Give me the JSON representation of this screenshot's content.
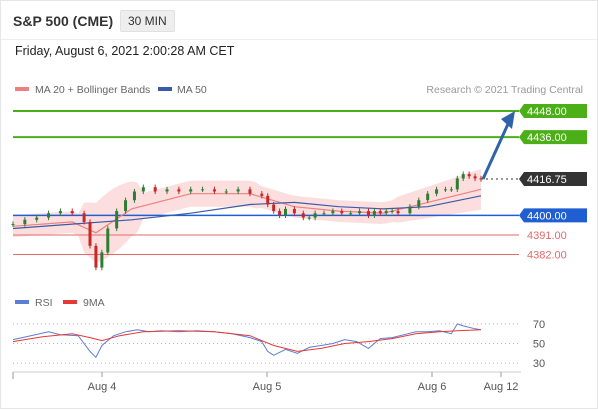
{
  "header": {
    "ticker": "S&P 500 (CME)",
    "timeframe": "30 MIN",
    "datetime": "Friday, August 6, 2021 2:00:28 AM CET"
  },
  "legend": {
    "ma20_bb": "MA 20 + Bollinger Bands",
    "ma50": "MA 50",
    "credit": "Research © 2021 Trading Central",
    "rsi": "RSI",
    "ma9": "9MA"
  },
  "colors": {
    "target": "#4caf18",
    "current": "#333333",
    "pivot": "#1f5fd1",
    "support": "#e36a6a",
    "arrow": "#2e63a8",
    "ma50": "#3a5ba8",
    "ma20": "#f08080",
    "rsi": "#5b7fd6",
    "rsi_ma": "#e53935"
  },
  "chart_data": [
    {
      "type": "line",
      "title": "S&P 500 (CME) 30 MIN",
      "x_ticks": [
        "Aug 4",
        "Aug 5",
        "Aug 6",
        "Aug 12"
      ],
      "ylim": [
        4368,
        4454
      ],
      "levels": [
        {
          "value": 4448.0,
          "label": "4448.00",
          "kind": "target"
        },
        {
          "value": 4436.0,
          "label": "4436.00",
          "kind": "target"
        },
        {
          "value": 4416.75,
          "label": "4416.75",
          "kind": "current"
        },
        {
          "value": 4400.0,
          "label": "4400.00",
          "kind": "pivot"
        },
        {
          "value": 4391.0,
          "label": "4391.00",
          "kind": "support"
        },
        {
          "value": 4382.0,
          "label": "4382.00",
          "kind": "support"
        }
      ],
      "series": [
        {
          "name": "Price",
          "points": [
            [
              0,
              4396
            ],
            [
              4,
              4398
            ],
            [
              8,
              4399
            ],
            [
              12,
              4401
            ],
            [
              16,
              4402
            ],
            [
              20,
              4401
            ],
            [
              24,
              4397
            ],
            [
              26,
              4386
            ],
            [
              28,
              4376
            ],
            [
              30,
              4383
            ],
            [
              32,
              4394
            ],
            [
              35,
              4402
            ],
            [
              38,
              4407
            ],
            [
              41,
              4411
            ],
            [
              44,
              4413
            ],
            [
              48,
              4411
            ],
            [
              52,
              4412
            ],
            [
              56,
              4411
            ],
            [
              60,
              4412
            ],
            [
              64,
              4412
            ],
            [
              68,
              4411
            ],
            [
              72,
              4411
            ],
            [
              76,
              4412
            ],
            [
              80,
              4410
            ],
            [
              84,
              4409
            ],
            [
              86,
              4405
            ],
            [
              88,
              4402
            ],
            [
              90,
              4400
            ],
            [
              92,
              4403
            ],
            [
              95,
              4401
            ],
            [
              98,
              4399
            ],
            [
              100,
              4399
            ],
            [
              102,
              4401
            ],
            [
              105,
              4401
            ],
            [
              108,
              4402
            ],
            [
              111,
              4401
            ],
            [
              114,
              4401
            ],
            [
              117,
              4402
            ],
            [
              120,
              4400
            ],
            [
              122,
              4402
            ],
            [
              124,
              4401
            ],
            [
              126,
              4402
            ],
            [
              128,
              4402
            ],
            [
              130,
              4401
            ],
            [
              134,
              4404
            ],
            [
              137,
              4407
            ],
            [
              140,
              4410
            ],
            [
              143,
              4412
            ],
            [
              146,
              4412
            ],
            [
              148,
              4412
            ],
            [
              150,
              4417
            ],
            [
              152,
              4419
            ],
            [
              154,
              4418
            ],
            [
              156,
              4417
            ],
            [
              158,
              4416.75
            ]
          ]
        },
        {
          "name": "MA 20",
          "points": [
            [
              0,
              4395
            ],
            [
              20,
              4397
            ],
            [
              28,
              4392
            ],
            [
              40,
              4403
            ],
            [
              60,
              4410
            ],
            [
              80,
              4410
            ],
            [
              95,
              4404
            ],
            [
              110,
              4402
            ],
            [
              125,
              4401
            ],
            [
              140,
              4406
            ],
            [
              158,
              4412
            ]
          ]
        },
        {
          "name": "MA 50",
          "points": [
            [
              0,
              4394
            ],
            [
              20,
              4396
            ],
            [
              40,
              4398
            ],
            [
              60,
              4401
            ],
            [
              80,
              4405
            ],
            [
              95,
              4406
            ],
            [
              110,
              4404
            ],
            [
              125,
              4403
            ],
            [
              140,
              4404
            ],
            [
              158,
              4409
            ]
          ]
        }
      ]
    },
    {
      "type": "line",
      "ylim": [
        23,
        75
      ],
      "y_ticks": [
        30,
        50,
        70
      ],
      "series": [
        {
          "name": "RSI",
          "points": [
            [
              0,
              54
            ],
            [
              6,
              58
            ],
            [
              12,
              62
            ],
            [
              16,
              59
            ],
            [
              22,
              58
            ],
            [
              26,
              42
            ],
            [
              28,
              36
            ],
            [
              30,
              48
            ],
            [
              34,
              58
            ],
            [
              38,
              62
            ],
            [
              42,
              64
            ],
            [
              46,
              62
            ],
            [
              50,
              63
            ],
            [
              56,
              62
            ],
            [
              62,
              63
            ],
            [
              68,
              62
            ],
            [
              74,
              60
            ],
            [
              80,
              56
            ],
            [
              84,
              52
            ],
            [
              86,
              42
            ],
            [
              88,
              38
            ],
            [
              92,
              44
            ],
            [
              96,
              40
            ],
            [
              100,
              46
            ],
            [
              104,
              48
            ],
            [
              108,
              50
            ],
            [
              112,
              54
            ],
            [
              116,
              52
            ],
            [
              120,
              45
            ],
            [
              124,
              55
            ],
            [
              128,
              56
            ],
            [
              132,
              59
            ],
            [
              136,
              62
            ],
            [
              140,
              62
            ],
            [
              144,
              63
            ],
            [
              148,
              60
            ],
            [
              150,
              70
            ],
            [
              152,
              68
            ],
            [
              156,
              65
            ],
            [
              158,
              64
            ]
          ]
        },
        {
          "name": "9MA",
          "points": [
            [
              0,
              52
            ],
            [
              10,
              57
            ],
            [
              20,
              60
            ],
            [
              26,
              56
            ],
            [
              30,
              53
            ],
            [
              36,
              58
            ],
            [
              44,
              62
            ],
            [
              56,
              63
            ],
            [
              68,
              62
            ],
            [
              80,
              58
            ],
            [
              88,
              48
            ],
            [
              96,
              42
            ],
            [
              104,
              45
            ],
            [
              112,
              50
            ],
            [
              120,
              52
            ],
            [
              128,
              55
            ],
            [
              136,
              60
            ],
            [
              144,
              62
            ],
            [
              150,
              63
            ],
            [
              158,
              64
            ]
          ]
        }
      ]
    }
  ]
}
